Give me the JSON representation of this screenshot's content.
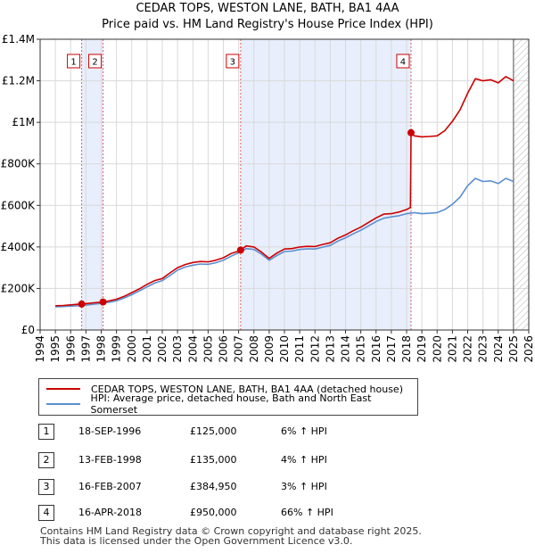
{
  "chart_data": {
    "type": "line",
    "title": "CEDAR TOPS, WESTON LANE, BATH, BA1 4AA",
    "subtitle": "Price paid vs. HM Land Registry's House Price Index (HPI)",
    "xlim": [
      1994,
      2026
    ],
    "ylim": [
      0,
      1400000
    ],
    "x_ticks": [
      "1994",
      "1995",
      "1996",
      "1997",
      "1998",
      "1999",
      "2000",
      "2001",
      "2002",
      "2003",
      "2004",
      "2005",
      "2006",
      "2007",
      "2008",
      "2009",
      "2010",
      "2011",
      "2012",
      "2013",
      "2014",
      "2015",
      "2016",
      "2017",
      "2018",
      "2019",
      "2020",
      "2021",
      "2022",
      "2023",
      "2024",
      "2025",
      "2026"
    ],
    "y_ticks": [
      {
        "value": 0,
        "label": "£0"
      },
      {
        "value": 200000,
        "label": "£200K"
      },
      {
        "value": 400000,
        "label": "£400K"
      },
      {
        "value": 600000,
        "label": "£600K"
      },
      {
        "value": 800000,
        "label": "£800K"
      },
      {
        "value": 1000000,
        "label": "£1M"
      },
      {
        "value": 1200000,
        "label": "£1.2M"
      },
      {
        "value": 1400000,
        "label": "£1.4M"
      }
    ],
    "hatched_future_from": 2025.0,
    "shaded_ranges": [
      [
        1996.72,
        1998.12
      ],
      [
        2007.13,
        2018.29
      ]
    ],
    "series": [
      {
        "name": "CEDAR TOPS, WESTON LANE, BATH, BA1 4AA (detached house)",
        "color": "#cc0000",
        "x": [
          1995.0,
          1995.5,
          1996.0,
          1996.5,
          1996.72,
          1997.0,
          1997.5,
          1998.0,
          1998.12,
          1998.5,
          1999.0,
          1999.5,
          2000.0,
          2000.5,
          2001.0,
          2001.5,
          2002.0,
          2002.5,
          2003.0,
          2003.5,
          2004.0,
          2004.5,
          2005.0,
          2005.5,
          2006.0,
          2006.5,
          2007.0,
          2007.13,
          2007.5,
          2008.0,
          2008.5,
          2009.0,
          2009.5,
          2010.0,
          2010.5,
          2011.0,
          2011.5,
          2012.0,
          2012.5,
          2013.0,
          2013.5,
          2014.0,
          2014.5,
          2015.0,
          2015.5,
          2016.0,
          2016.5,
          2017.0,
          2017.5,
          2018.0,
          2018.25,
          2018.29,
          2018.5,
          2019.0,
          2019.5,
          2020.0,
          2020.5,
          2021.0,
          2021.5,
          2022.0,
          2022.5,
          2023.0,
          2023.5,
          2024.0,
          2024.5,
          2025.0
        ],
        "y": [
          117000,
          118000,
          121000,
          124000,
          125000,
          127000,
          131000,
          134000,
          135000,
          140000,
          148000,
          162000,
          180000,
          198000,
          220000,
          238000,
          248000,
          275000,
          300000,
          315000,
          325000,
          330000,
          328000,
          336000,
          348000,
          368000,
          380000,
          384950,
          405000,
          400000,
          375000,
          345000,
          370000,
          390000,
          392000,
          400000,
          403000,
          402000,
          412000,
          420000,
          442000,
          458000,
          478000,
          495000,
          518000,
          540000,
          558000,
          560000,
          568000,
          580000,
          590000,
          950000,
          935000,
          930000,
          932000,
          935000,
          960000,
          1005000,
          1060000,
          1140000,
          1210000,
          1200000,
          1205000,
          1190000,
          1220000,
          1200000
        ]
      },
      {
        "name": "HPI: Average price, detached house, Bath and North East Somerset",
        "color": "#5b8fd0",
        "x": [
          1995.0,
          1995.5,
          1996.0,
          1996.5,
          1997.0,
          1997.5,
          1998.0,
          1998.5,
          1999.0,
          1999.5,
          2000.0,
          2000.5,
          2001.0,
          2001.5,
          2002.0,
          2002.5,
          2003.0,
          2003.5,
          2004.0,
          2004.5,
          2005.0,
          2005.5,
          2006.0,
          2006.5,
          2007.0,
          2007.5,
          2008.0,
          2008.5,
          2009.0,
          2009.5,
          2010.0,
          2010.5,
          2011.0,
          2011.5,
          2012.0,
          2012.5,
          2013.0,
          2013.5,
          2014.0,
          2014.5,
          2015.0,
          2015.5,
          2016.0,
          2016.5,
          2017.0,
          2017.5,
          2018.0,
          2018.5,
          2019.0,
          2019.5,
          2020.0,
          2020.5,
          2021.0,
          2021.5,
          2022.0,
          2022.5,
          2023.0,
          2023.5,
          2024.0,
          2024.5,
          2025.0
        ],
        "y": [
          112000,
          113000,
          115000,
          117000,
          120000,
          124000,
          128000,
          133000,
          141000,
          154000,
          170000,
          188000,
          208000,
          226000,
          238000,
          262000,
          288000,
          303000,
          312000,
          318000,
          316000,
          324000,
          336000,
          355000,
          372000,
          392000,
          388000,
          365000,
          336000,
          358000,
          378000,
          380000,
          388000,
          391000,
          390000,
          399000,
          407000,
          428000,
          444000,
          463000,
          480000,
          501000,
          522000,
          538000,
          545000,
          550000,
          560000,
          565000,
          560000,
          562000,
          565000,
          580000,
          605000,
          640000,
          695000,
          730000,
          715000,
          718000,
          705000,
          730000,
          715000
        ]
      }
    ],
    "sales": [
      {
        "num": "1",
        "x": 1996.72,
        "value": 125000,
        "date": "18-SEP-1996",
        "price": "£125,000",
        "hpi": "6% ↑ HPI"
      },
      {
        "num": "2",
        "x": 1998.12,
        "value": 135000,
        "date": "13-FEB-1998",
        "price": "£135,000",
        "hpi": "4% ↑ HPI"
      },
      {
        "num": "3",
        "x": 2007.13,
        "value": 384950,
        "date": "16-FEB-2007",
        "price": "£384,950",
        "hpi": "3% ↑ HPI"
      },
      {
        "num": "4",
        "x": 2018.29,
        "value": 950000,
        "date": "16-APR-2018",
        "price": "£950,000",
        "hpi": "66% ↑ HPI"
      }
    ]
  },
  "legend": {
    "series1": "CEDAR TOPS, WESTON LANE, BATH, BA1 4AA (detached house)",
    "series2": "HPI: Average price, detached house, Bath and North East Somerset"
  },
  "footer": {
    "line1": "Contains HM Land Registry data © Crown copyright and database right 2025.",
    "line2": "This data is licensed under the Open Government Licence v3.0."
  }
}
